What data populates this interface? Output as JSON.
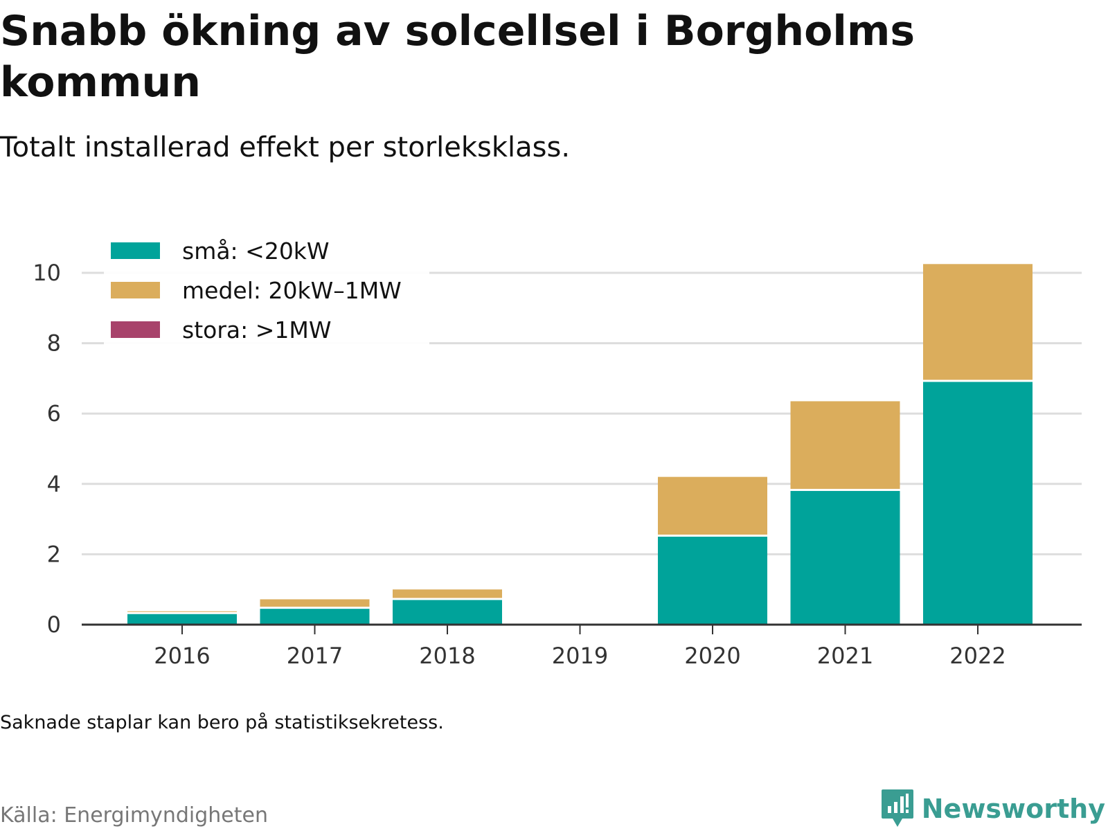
{
  "header": {
    "title": "Snabb ökning av solcellsel i Borgholms kommun",
    "subtitle": "Totalt installerad effekt per storleksklass."
  },
  "footer": {
    "note": "Saknade staplar kan bero på statistiksekretess.",
    "source": "Källa: Energimyndigheten",
    "brand": "Newsworthy",
    "brand_icon": "bar-chart-speech-bubble-icon",
    "brand_color": "#3a9d92"
  },
  "chart_data": {
    "type": "bar",
    "stacked": true,
    "categories": [
      "2016",
      "2017",
      "2018",
      "2019",
      "2020",
      "2021",
      "2022"
    ],
    "series": [
      {
        "name": "små: <20kW",
        "color": "#00a39a",
        "values": [
          0.3,
          0.45,
          0.7,
          0,
          2.5,
          3.8,
          6.9
        ]
      },
      {
        "name": "medel: 20kW–1MW",
        "color": "#dbad5c",
        "values": [
          0.08,
          0.27,
          0.3,
          0,
          1.7,
          2.55,
          3.35
        ]
      },
      {
        "name": "stora: >1MW",
        "color": "#a8436b",
        "values": [
          0,
          0,
          0,
          0,
          0,
          0,
          0
        ]
      }
    ],
    "yticks": [
      0,
      2,
      4,
      6,
      8,
      10
    ],
    "ylim": [
      0,
      10.4
    ],
    "grid": true,
    "legend_position": "top-left",
    "xlabel": "",
    "ylabel": ""
  }
}
